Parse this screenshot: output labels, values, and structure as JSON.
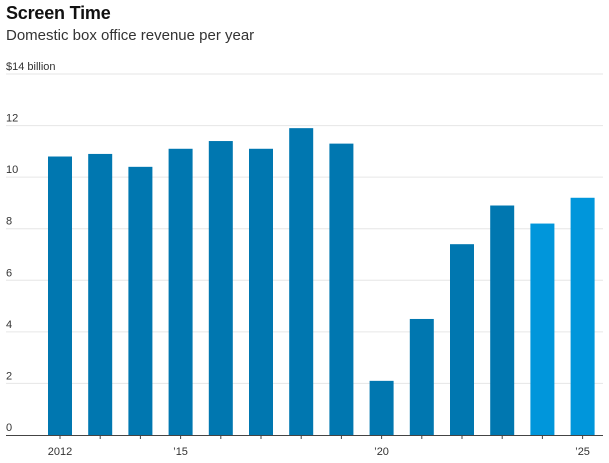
{
  "header": {
    "title": "Screen Time",
    "subtitle": "Domestic box office revenue per year"
  },
  "colors": {
    "bar_dark": "#0077B0",
    "bar_light": "#0096DB",
    "grid": "#e6e6e6",
    "axis": "#333333"
  },
  "chart_data": {
    "type": "bar",
    "title": "Screen Time",
    "subtitle": "Domestic box office revenue per year",
    "ylabel": "",
    "xlabel": "",
    "ylim": [
      0,
      14
    ],
    "y_ticks": [
      0,
      2,
      4,
      6,
      8,
      10,
      12,
      14
    ],
    "y_tick_labels": [
      "0",
      "2",
      "4",
      "6",
      "8",
      "10",
      "12",
      "$14 billion"
    ],
    "categories": [
      2012,
      2013,
      2014,
      2015,
      2016,
      2017,
      2018,
      2019,
      2020,
      2021,
      2022,
      2023,
      2024,
      2025
    ],
    "x_tick_labels": [
      {
        "year": 2012,
        "label": "2012"
      },
      {
        "year": 2015,
        "label": "’15"
      },
      {
        "year": 2020,
        "label": "’20"
      },
      {
        "year": 2025,
        "label": "’25"
      }
    ],
    "values": [
      10.8,
      10.9,
      10.4,
      11.1,
      11.4,
      11.1,
      11.9,
      11.3,
      2.1,
      4.5,
      7.4,
      8.9,
      8.2,
      9.2
    ],
    "highlighted": [
      2024,
      2025
    ],
    "grid": true
  }
}
